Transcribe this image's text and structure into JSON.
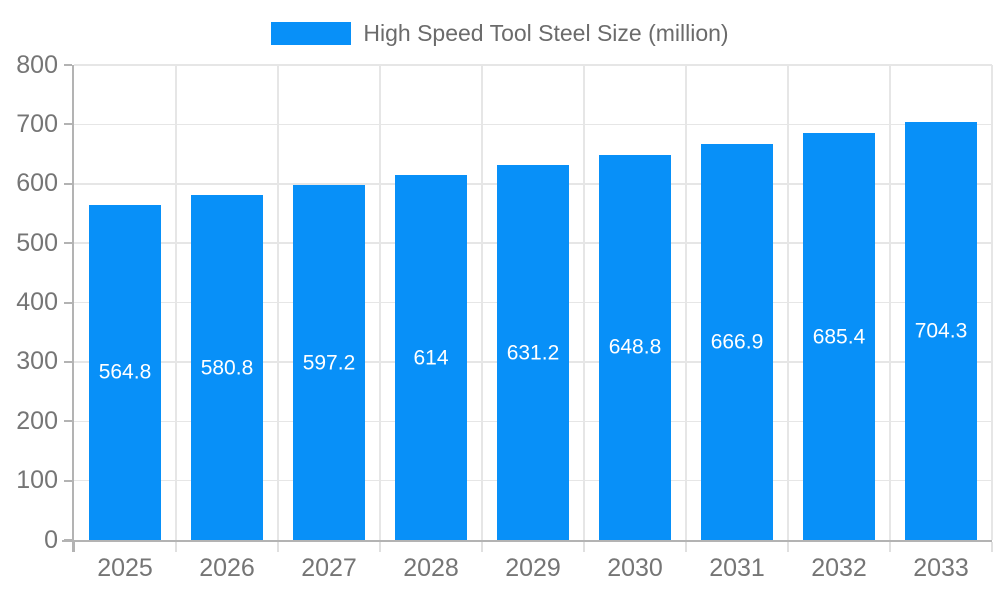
{
  "chart_data": {
    "type": "bar",
    "title": "",
    "categories": [
      "2025",
      "2026",
      "2027",
      "2028",
      "2029",
      "2030",
      "2031",
      "2032",
      "2033"
    ],
    "series": [
      {
        "name": "High Speed Tool Steel Size (million)",
        "values": [
          564.8,
          580.8,
          597.2,
          614,
          631.2,
          648.8,
          666.9,
          685.4,
          704.3
        ],
        "value_labels": [
          "564.8",
          "580.8",
          "597.2",
          "614",
          "631.2",
          "648.8",
          "666.9",
          "685.4",
          "704.3"
        ]
      }
    ],
    "xlabel": "",
    "ylabel": "",
    "ylim": [
      0,
      800
    ],
    "yticks": [
      0,
      100,
      200,
      300,
      400,
      500,
      600,
      700,
      800
    ],
    "ytick_labels": [
      "0",
      "100",
      "200",
      "300",
      "400",
      "500",
      "600",
      "700",
      "800"
    ],
    "grid": true,
    "legend_position": "top",
    "colors": {
      "bar": "#0890f8",
      "value_label": "#ffffff",
      "axis_text": "#757575",
      "legend_text": "#6b6b6b",
      "axis_line": "#b3b3b3",
      "grid_line": "#e6e6e6",
      "boundary_tick": "#e0e0e0",
      "background": "#ffffff"
    }
  }
}
